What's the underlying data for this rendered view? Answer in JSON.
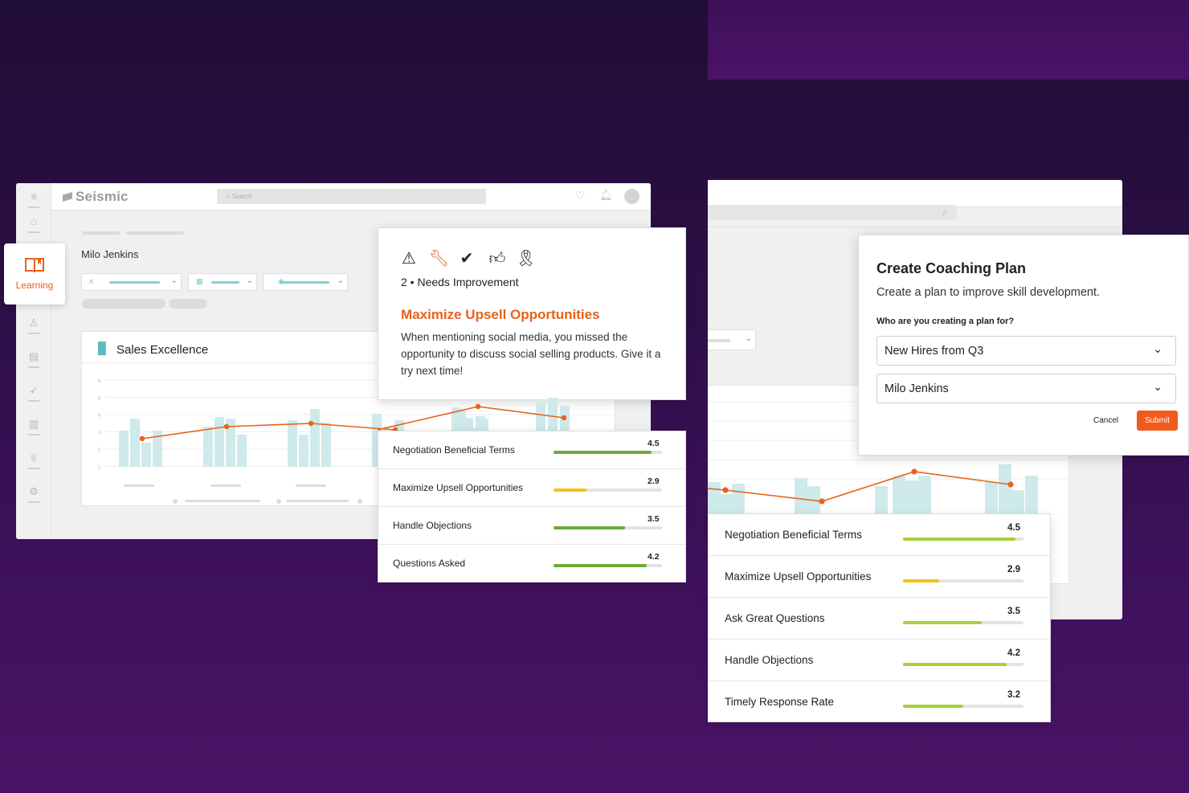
{
  "left_window": {
    "brand": "Seismic",
    "search_placeholder": "Search",
    "sidebar_items": [
      "home-icon",
      "learning-icon",
      "trophy-icon",
      "inbox-icon",
      "send-icon",
      "reports-icon",
      "award-icon",
      "settings-icon"
    ],
    "learning_label": "Learning",
    "person_name": "Milo Jenkins",
    "chart_card_title": "Sales Excellence",
    "chart_ticks": [
      "6",
      "5",
      "4",
      "3",
      "2",
      "1"
    ]
  },
  "feedback": {
    "icons": [
      "warning-icon",
      "wrench-icon",
      "checkmark-icon",
      "thumbs-up-icon",
      "ribbon-icon"
    ],
    "rating": "2 • Needs Improvement",
    "title": "Maximize Upsell Opportunities",
    "body": "When mentioning social media, you missed the opportunity to discuss social selling products. Give it a try next time!"
  },
  "left_scores": [
    {
      "label": "Negotiation Beneficial Terms",
      "value": "4.5",
      "fraction": 0.9,
      "color": "#6aaa3a"
    },
    {
      "label": "Maximize Upsell Opportunities",
      "value": "2.9",
      "fraction": 0.3,
      "color": "#f2c21b"
    },
    {
      "label": "Handle Objections",
      "value": "3.5",
      "fraction": 0.66,
      "color": "#6aaa3a"
    },
    {
      "label": "Questions Asked",
      "value": "4.2",
      "fraction": 0.86,
      "color": "#6aaa3a"
    }
  ],
  "coaching_modal": {
    "title": "Create Coaching Plan",
    "subtitle": "Create a plan to improve skill development.",
    "question": "Who are you creating a plan for?",
    "group_select": "New Hires from Q3",
    "person_select": "Milo Jenkins",
    "cancel_label": "Cancel",
    "submit_label": "Submit"
  },
  "right_scores": [
    {
      "label": "Negotiation Beneficial Terms",
      "value": "4.5",
      "fraction": 0.93,
      "color": "#a8cf3a"
    },
    {
      "label": "Maximize Upsell Opportunities",
      "value": "2.9",
      "fraction": 0.3,
      "color": "#f2c21b"
    },
    {
      "label": "Ask Great Questions",
      "value": "3.5",
      "fraction": 0.65,
      "color": "#a8cf3a"
    },
    {
      "label": "Handle Objections",
      "value": "4.2",
      "fraction": 0.86,
      "color": "#a8cf3a"
    },
    {
      "label": "Timely Response Rate",
      "value": "3.2",
      "fraction": 0.5,
      "color": "#a8cf3a"
    }
  ],
  "colors": {
    "accent": "#e8621a",
    "submit": "#f15a1c",
    "bar": "#cfeaea",
    "line": "#e8621a"
  }
}
